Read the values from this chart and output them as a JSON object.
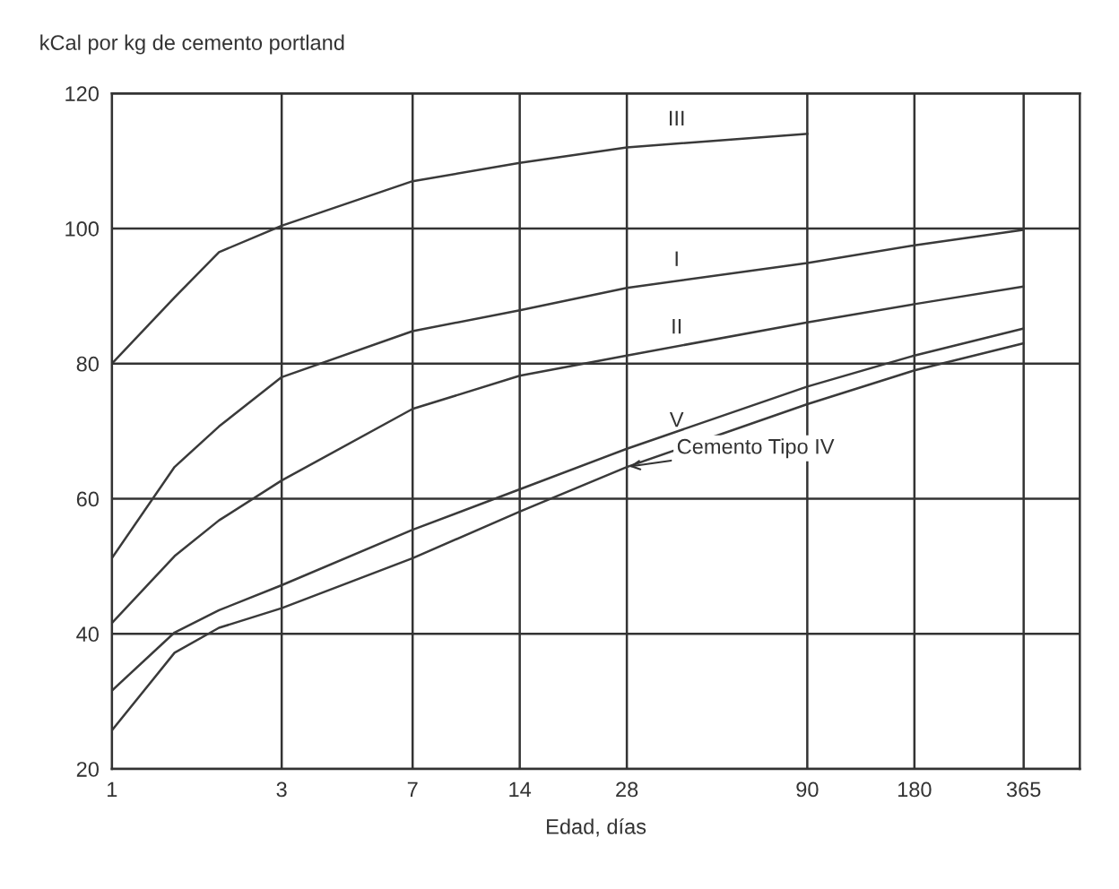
{
  "chart_data": {
    "type": "line",
    "ylabel": "kCal por kg de cemento portland",
    "xlabel": "Edad, días",
    "log": "x",
    "x": [
      1,
      1.5,
      2,
      3,
      7,
      14,
      28,
      90,
      180,
      365
    ],
    "series": [
      {
        "name": "III",
        "color": "#3a3a3a",
        "x": [
          1,
          1.5,
          2,
          3,
          7,
          14,
          28,
          90
        ],
        "values": [
          80,
          89.8,
          96.5,
          100.4,
          107,
          109.7,
          112,
          114
        ]
      },
      {
        "name": "I",
        "color": "#3a3a3a",
        "values": [
          51.2,
          64.7,
          70.7,
          78,
          84.8,
          87.9,
          91.2,
          94.9,
          97.5,
          99.8
        ]
      },
      {
        "name": "II",
        "color": "#3a3a3a",
        "values": [
          41.6,
          51.5,
          56.8,
          62.7,
          73.3,
          78.2,
          81.2,
          86.1,
          88.8,
          91.4
        ]
      },
      {
        "name": "V",
        "color": "#3a3a3a",
        "values": [
          31.6,
          40.2,
          43.5,
          47.2,
          55.4,
          61.4,
          67.4,
          76.6,
          81.2,
          85.2
        ]
      },
      {
        "name": "Cemento Tipo IV",
        "color": "#3a3a3a",
        "values": [
          25.7,
          37.2,
          40.9,
          43.8,
          51.2,
          58.1,
          64.7,
          74,
          79,
          83
        ]
      }
    ],
    "xlim": [
      1,
      525
    ],
    "xticks": [
      1,
      3,
      7,
      14,
      28,
      90,
      180,
      365
    ],
    "ylim": [
      20,
      120
    ],
    "yticks": [
      20,
      40,
      60,
      80,
      100,
      120
    ],
    "grid": true,
    "marker": "none",
    "line_style": "solid"
  }
}
